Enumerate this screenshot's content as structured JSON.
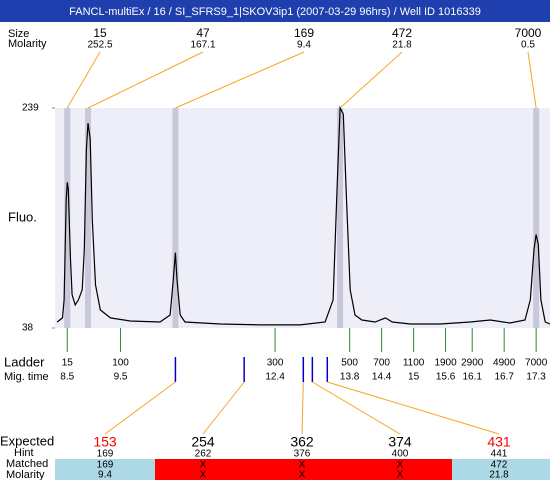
{
  "header": {
    "title": "FANCL-multiEx / 16 / SI_SFRS9_1|SKOV3ip1 (2007-03-29 96hrs) / Well ID 1016339"
  },
  "peaks": {
    "labels": [
      "Size",
      "Molarity"
    ],
    "sizes": [
      15,
      47,
      169,
      472,
      7000
    ],
    "molarity": [
      252.5,
      167.1,
      9.4,
      21.8,
      0.5
    ],
    "times": [
      8.5,
      8.89,
      10.53,
      13.62,
      17.3
    ],
    "line_color": "#f5a623",
    "band_color": "#c8c8d8"
  },
  "plot": {
    "ylabel": "Fluo.",
    "ylim": [
      38,
      239
    ],
    "yticks": [
      38,
      239
    ],
    "xlim": [
      8.27,
      17.56
    ],
    "background": "#eeeef8",
    "trace": {
      "color": "#000000",
      "x": [
        8.31,
        8.41,
        8.44,
        8.48,
        8.5,
        8.52,
        8.56,
        8.59,
        8.65,
        8.71,
        8.78,
        8.82,
        8.86,
        8.89,
        8.93,
        8.97,
        9.03,
        9.12,
        9.31,
        9.68,
        10.24,
        10.43,
        10.49,
        10.53,
        10.56,
        10.62,
        10.71,
        11.37,
        12.12,
        12.87,
        13.34,
        13.49,
        13.57,
        13.62,
        13.68,
        13.74,
        13.81,
        13.9,
        14.03,
        14.28,
        14.47,
        14.6,
        14.94,
        15.5,
        16.06,
        16.44,
        16.81,
        17.09,
        17.19,
        17.26,
        17.3,
        17.34,
        17.39,
        17.47,
        17.56
      ],
      "y": [
        43.5,
        47.2,
        63.7,
        155.5,
        171.1,
        164.7,
        100.4,
        68.3,
        59.1,
        63.7,
        72.9,
        109.6,
        201.4,
        225.2,
        210.5,
        137.1,
        77.5,
        54.5,
        47.2,
        44.4,
        43.5,
        49.9,
        82.1,
        106.8,
        82.1,
        49.9,
        43.5,
        41.7,
        40.8,
        40.8,
        43.5,
        63.7,
        173.8,
        239,
        233.5,
        155.5,
        72.9,
        49.9,
        45.3,
        43.5,
        47.2,
        43.5,
        41.7,
        41.7,
        43.5,
        45.3,
        42.6,
        45.3,
        63.7,
        109.6,
        123.4,
        114.2,
        63.7,
        43.5,
        41.7
      ]
    }
  },
  "ladder": {
    "labels": [
      "Ladder",
      "Mig. time"
    ],
    "sizes": [
      15,
      100,
      300,
      500,
      700,
      1100,
      1900,
      2900,
      4900,
      7000
    ],
    "times": [
      8.5,
      9.5,
      12.4,
      13.8,
      14.4,
      15,
      15.6,
      16.1,
      16.7,
      17.3
    ],
    "color": "#2e8b2e"
  },
  "expected": {
    "labels": [
      "Expected",
      "Hint",
      "Matched",
      "Molarity"
    ],
    "times": [
      10.53,
      11.82,
      12.93,
      13.1,
      13.38
    ],
    "expected": [
      153,
      254,
      362,
      374,
      431
    ],
    "hint": [
      169,
      262,
      376,
      400,
      441
    ],
    "matched": [
      169,
      "X",
      "X",
      "X",
      472
    ],
    "molarity": [
      9.4,
      "X",
      "X",
      "X",
      21.8
    ],
    "expected_colors": [
      "#ff0000",
      "#000000",
      "#000000",
      "#000000",
      "#ff0000"
    ],
    "cell_colors": [
      "#add8e6",
      "#ff0000",
      "#ff0000",
      "#ff0000",
      "#add8e6"
    ],
    "tick_color": "#0000cc"
  }
}
